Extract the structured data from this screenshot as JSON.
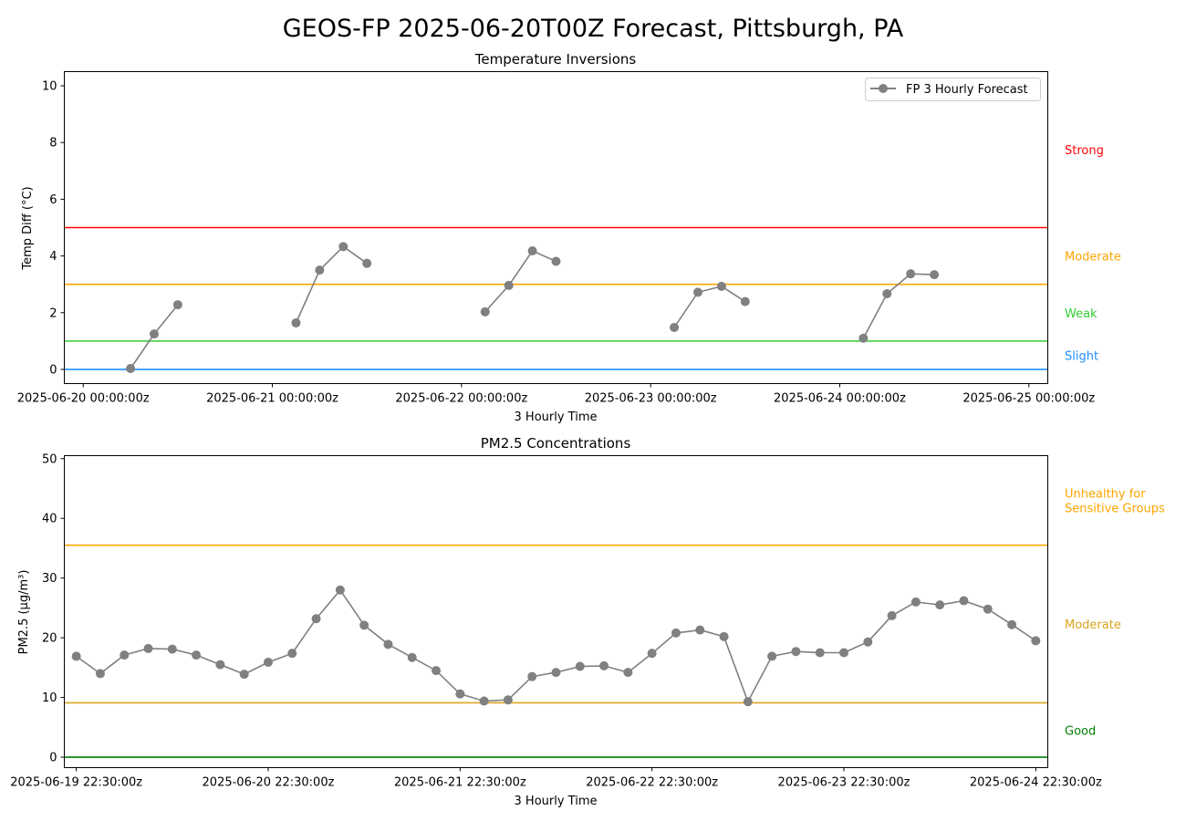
{
  "suptitle": "GEOS-FP 2025-06-20T00Z Forecast, Pittsburgh, PA",
  "chart_data": [
    {
      "type": "line",
      "title": "Temperature Inversions",
      "xlabel": "3 Hourly Time",
      "ylabel": "Temp Diff (°C)",
      "ylim": [
        -0.5,
        10.5
      ],
      "yticks": [
        0,
        2,
        4,
        6,
        8,
        10
      ],
      "xlim": [
        "2025-06-19T21:36:00Z",
        "2025-06-25T02:24:00Z"
      ],
      "xticks": [
        "2025-06-20T00:00:00Z",
        "2025-06-21T00:00:00Z",
        "2025-06-22T00:00:00Z",
        "2025-06-23T00:00:00Z",
        "2025-06-24T00:00:00Z",
        "2025-06-25T00:00:00Z"
      ],
      "xtick_labels": [
        "2025-06-20 00:00:00z",
        "2025-06-21 00:00:00z",
        "2025-06-22 00:00:00z",
        "2025-06-23 00:00:00z",
        "2025-06-24 00:00:00z",
        "2025-06-25 00:00:00z"
      ],
      "grid": false,
      "legend_position": "top-right",
      "series": [
        {
          "name": "FP 3 Hourly Forecast",
          "color": "#808080",
          "segments": [
            [
              [
                "2025-06-20T06:00:00Z",
                0.03
              ],
              [
                "2025-06-20T09:00:00Z",
                1.25
              ],
              [
                "2025-06-20T12:00:00Z",
                2.28
              ]
            ],
            [
              [
                "2025-06-21T03:00:00Z",
                1.64
              ],
              [
                "2025-06-21T06:00:00Z",
                3.5
              ],
              [
                "2025-06-21T09:00:00Z",
                4.33
              ],
              [
                "2025-06-21T12:00:00Z",
                3.74
              ]
            ],
            [
              [
                "2025-06-22T03:00:00Z",
                2.03
              ],
              [
                "2025-06-22T06:00:00Z",
                2.96
              ],
              [
                "2025-06-22T09:00:00Z",
                4.18
              ],
              [
                "2025-06-22T12:00:00Z",
                3.81
              ]
            ],
            [
              [
                "2025-06-23T03:00:00Z",
                1.48
              ],
              [
                "2025-06-23T06:00:00Z",
                2.72
              ],
              [
                "2025-06-23T09:00:00Z",
                2.93
              ],
              [
                "2025-06-23T12:00:00Z",
                2.39
              ]
            ],
            [
              [
                "2025-06-24T03:00:00Z",
                1.1
              ],
              [
                "2025-06-24T06:00:00Z",
                2.67
              ],
              [
                "2025-06-24T09:00:00Z",
                3.37
              ],
              [
                "2025-06-24T12:00:00Z",
                3.34
              ]
            ]
          ]
        }
      ],
      "thresholds": [
        {
          "value": 0,
          "color": "#1e90ff"
        },
        {
          "value": 1,
          "color": "#32cd32"
        },
        {
          "value": 3,
          "color": "#ffa500"
        },
        {
          "value": 5,
          "color": "#ff0000"
        }
      ],
      "category_labels": [
        {
          "text": "Slight",
          "value": 0.5,
          "color": "#1e90ff"
        },
        {
          "text": "Weak",
          "value": 2,
          "color": "#32cd32"
        },
        {
          "text": "Moderate",
          "value": 4,
          "color": "#ffa500"
        },
        {
          "text": "Strong",
          "value": 7.75,
          "color": "#ff0000"
        }
      ]
    },
    {
      "type": "line",
      "title": "PM2.5 Concentrations",
      "xlabel": "3 Hourly Time",
      "ylabel": "PM2.5 (µg/m³)",
      "ylim": [
        -1.75,
        50.5
      ],
      "yticks": [
        0,
        10,
        20,
        30,
        40,
        50
      ],
      "xlim": [
        "2025-06-19T21:00:00Z",
        "2025-06-25T00:00:00Z"
      ],
      "xticks": [
        "2025-06-19T22:30:00Z",
        "2025-06-20T22:30:00Z",
        "2025-06-21T22:30:00Z",
        "2025-06-22T22:30:00Z",
        "2025-06-23T22:30:00Z",
        "2025-06-24T22:30:00Z"
      ],
      "xtick_labels": [
        "2025-06-19 22:30:00z",
        "2025-06-20 22:30:00z",
        "2025-06-21 22:30:00z",
        "2025-06-22 22:30:00z",
        "2025-06-23 22:30:00z",
        "2025-06-24 22:30:00z"
      ],
      "grid": false,
      "series": [
        {
          "color": "#808080",
          "x_start": "2025-06-19T22:30:00Z",
          "x_step_hours": 3,
          "values": [
            16.9,
            14.0,
            17.1,
            18.2,
            18.1,
            17.1,
            15.5,
            13.9,
            15.9,
            17.4,
            23.2,
            28.0,
            22.1,
            18.9,
            16.7,
            14.5,
            10.6,
            9.4,
            9.6,
            13.5,
            14.2,
            15.2,
            15.3,
            14.2,
            17.4,
            20.8,
            21.3,
            20.2,
            9.3,
            16.9,
            17.7,
            17.5,
            17.5,
            19.3,
            23.7,
            26.0,
            25.5,
            26.2,
            24.8,
            22.2,
            19.5
          ]
        }
      ],
      "thresholds": [
        {
          "value": 0,
          "color": "#008000"
        },
        {
          "value": 9.1,
          "color": "#daa520"
        },
        {
          "value": 35.5,
          "color": "#ffa500"
        }
      ],
      "category_labels": [
        {
          "text": "Good",
          "value": 4.5,
          "color": "#008000"
        },
        {
          "text": "Moderate",
          "value": 22.3,
          "color": "#daa520"
        },
        {
          "text": "Unhealthy for\nSensitive Groups",
          "value": 43,
          "color": "#ffa500"
        }
      ]
    }
  ]
}
